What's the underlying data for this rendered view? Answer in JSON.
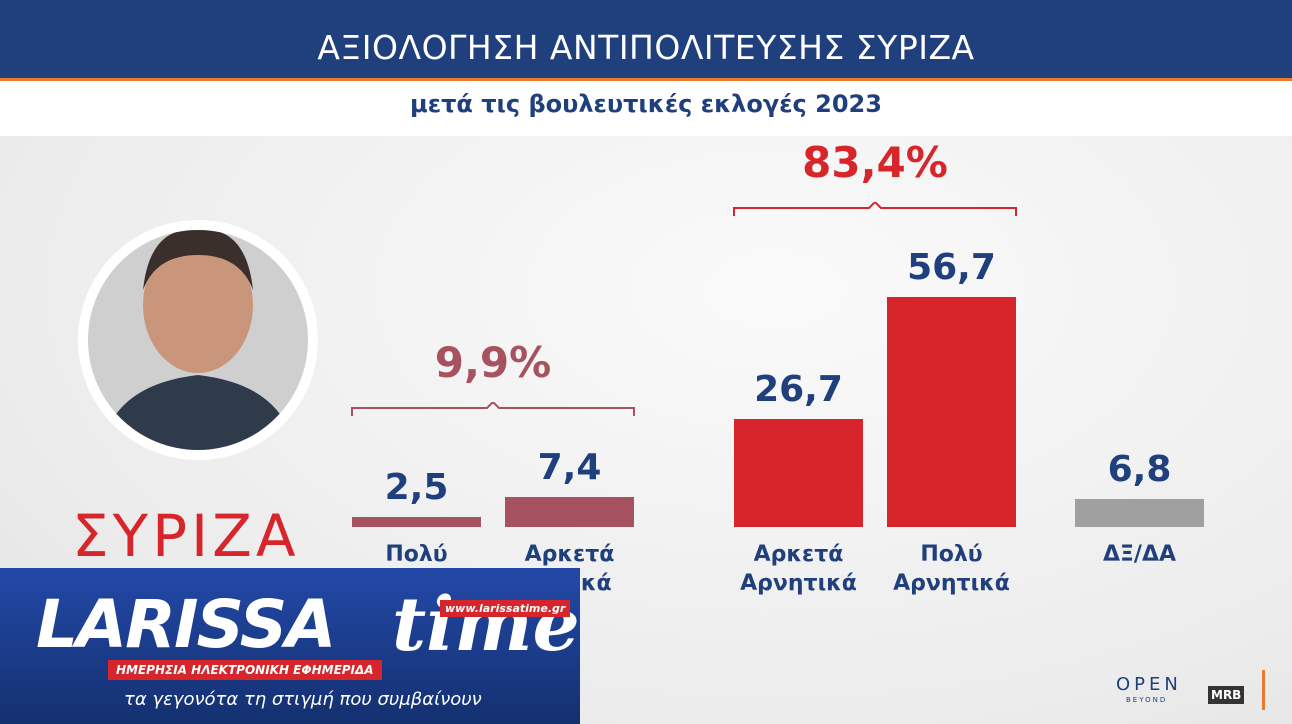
{
  "chart_data": {
    "type": "bar",
    "title": "ΑΞΙΟΛΟΓΗΣΗ ΑΝΤΙΠΟΛΙΤΕΥΣΗΣ ΣΥΡΙΖΑ",
    "subtitle": "μετά τις βουλευτικές εκλογές 2023",
    "categories": [
      "Πολύ Θετικά",
      "Αρκετά Θετικά",
      "Αρκετά Αρνητικά",
      "Πολύ Αρνητικά",
      "ΔΞ/ΔΑ"
    ],
    "values": [
      2.5,
      7.4,
      26.7,
      56.7,
      6.8
    ],
    "value_labels": [
      "2,5",
      "7,4",
      "26,7",
      "56,7",
      "6,8"
    ],
    "colors": [
      "#a65260",
      "#a65260",
      "#d7262b",
      "#d7262b",
      "#a0a0a0"
    ],
    "groups": [
      {
        "value": 9.9,
        "label": "9,9%",
        "color": "#a65260"
      },
      {
        "value": 83.4,
        "label": "83,4%",
        "color": "#d7262b"
      }
    ]
  },
  "party_logo": "ΣΥΡΙΖΑ",
  "branding": {
    "name": "LARISSA",
    "name2": "time",
    "url": "www.larissatime.gr",
    "tagline": "ΗΜΕΡΗΣΙΑ ΗΛΕΚΤΡΟΝΙΚΗ ΕΦΗΜΕΡΙΔΑ",
    "slogan": "τα γεγονότα τη στιγμή που συμβαίνουν",
    "channel": "OPEN",
    "channel_sub": "BEYOND",
    "pollster": "MRB"
  }
}
